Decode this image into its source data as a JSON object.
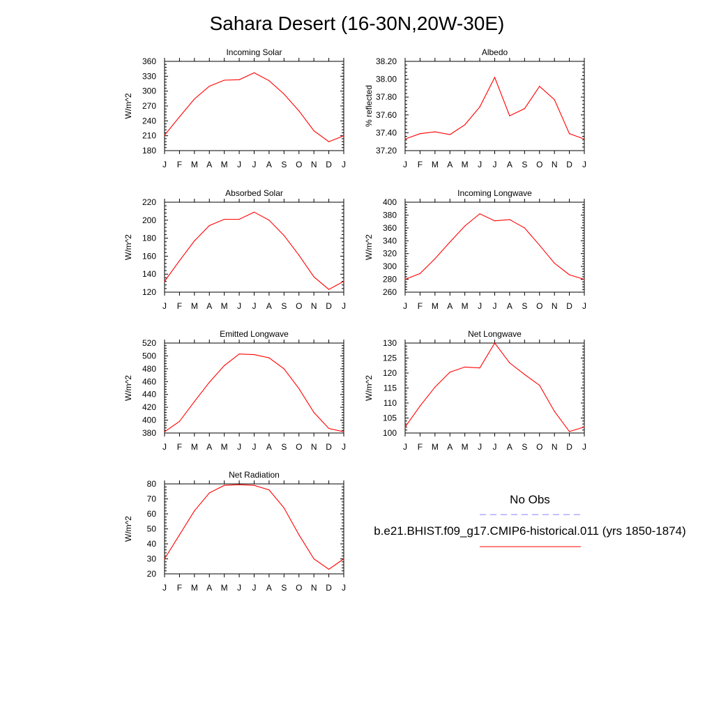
{
  "page_title": "Sahara Desert (16-30N,20W-30E)",
  "legend": {
    "obs_label": "No Obs",
    "obs_color": "#8080ff",
    "model_label": "b.e21.BHIST.f09_g17.CMIP6-historical.011 (yrs 1850-1874)",
    "model_color": "#ff0000"
  },
  "chart_data": [
    {
      "type": "line",
      "title": "Incoming Solar",
      "ylabel": "W/m^2",
      "xlabel": "",
      "categories": [
        "J",
        "F",
        "M",
        "A",
        "M",
        "J",
        "J",
        "A",
        "S",
        "O",
        "N",
        "D",
        "J"
      ],
      "ylim": [
        180,
        360
      ],
      "yticks": [
        "180",
        "210",
        "240",
        "270",
        "300",
        "330",
        "360"
      ],
      "series": [
        {
          "values": [
            211,
            248,
            284,
            310,
            322,
            323,
            337,
            321,
            294,
            260,
            220,
            198,
            210
          ]
        }
      ]
    },
    {
      "type": "line",
      "title": "Albedo",
      "ylabel": "% reflected",
      "xlabel": "",
      "categories": [
        "J",
        "F",
        "M",
        "A",
        "M",
        "J",
        "J",
        "A",
        "S",
        "O",
        "N",
        "D",
        "J"
      ],
      "ylim": [
        37.2,
        38.2
      ],
      "yticks": [
        "37.20",
        "37.40",
        "37.60",
        "37.80",
        "38.00",
        "38.20"
      ],
      "series": [
        {
          "values": [
            37.33,
            37.39,
            37.41,
            37.38,
            37.49,
            37.69,
            38.02,
            37.59,
            37.67,
            37.92,
            37.77,
            37.39,
            37.33
          ]
        }
      ]
    },
    {
      "type": "line",
      "title": "Absorbed Solar",
      "ylabel": "W/m^2",
      "xlabel": "",
      "categories": [
        "J",
        "F",
        "M",
        "A",
        "M",
        "J",
        "J",
        "A",
        "S",
        "O",
        "N",
        "D",
        "J"
      ],
      "ylim": [
        120,
        220
      ],
      "yticks": [
        "120",
        "140",
        "160",
        "180",
        "200",
        "220"
      ],
      "series": [
        {
          "values": [
            132,
            155,
            177,
            194,
            201,
            201,
            209,
            200,
            183,
            161,
            137,
            123,
            132
          ]
        }
      ]
    },
    {
      "type": "line",
      "title": "Incoming Longwave",
      "ylabel": "W/m^2",
      "xlabel": "",
      "categories": [
        "J",
        "F",
        "M",
        "A",
        "M",
        "J",
        "J",
        "A",
        "S",
        "O",
        "N",
        "D",
        "J"
      ],
      "ylim": [
        260,
        400
      ],
      "yticks": [
        "260",
        "280",
        "300",
        "320",
        "340",
        "360",
        "380",
        "400"
      ],
      "series": [
        {
          "values": [
            280,
            289,
            312,
            338,
            363,
            382,
            371,
            373,
            360,
            333,
            305,
            287,
            280
          ]
        }
      ]
    },
    {
      "type": "line",
      "title": "Emitted Longwave",
      "ylabel": "W/m^2",
      "xlabel": "",
      "categories": [
        "J",
        "F",
        "M",
        "A",
        "M",
        "J",
        "J",
        "A",
        "S",
        "O",
        "N",
        "D",
        "J"
      ],
      "ylim": [
        380,
        520
      ],
      "yticks": [
        "380",
        "400",
        "420",
        "440",
        "460",
        "480",
        "500",
        "520"
      ],
      "series": [
        {
          "values": [
            382,
            398,
            429,
            459,
            485,
            503,
            502,
            497,
            480,
            449,
            412,
            387,
            382
          ]
        }
      ]
    },
    {
      "type": "line",
      "title": "Net Longwave",
      "ylabel": "W/m^2",
      "xlabel": "",
      "categories": [
        "J",
        "F",
        "M",
        "A",
        "M",
        "J",
        "J",
        "A",
        "S",
        "O",
        "N",
        "D",
        "J"
      ],
      "ylim": [
        100,
        130
      ],
      "yticks": [
        "100",
        "105",
        "110",
        "115",
        "120",
        "125",
        "130"
      ],
      "series": [
        {
          "values": [
            102,
            109,
            115.3,
            120.3,
            122,
            121.7,
            130,
            123.4,
            119.5,
            115.9,
            107.2,
            100.5,
            102
          ]
        }
      ]
    },
    {
      "type": "line",
      "title": "Net Radiation",
      "ylabel": "W/m^2",
      "xlabel": "",
      "categories": [
        "J",
        "F",
        "M",
        "A",
        "M",
        "J",
        "J",
        "A",
        "S",
        "O",
        "N",
        "D",
        "J"
      ],
      "ylim": [
        20,
        80
      ],
      "yticks": [
        "20",
        "30",
        "40",
        "50",
        "60",
        "70",
        "80"
      ],
      "series": [
        {
          "values": [
            30,
            46,
            62,
            74,
            79,
            79.5,
            79,
            76,
            64,
            46,
            30,
            23,
            30
          ]
        }
      ]
    }
  ]
}
